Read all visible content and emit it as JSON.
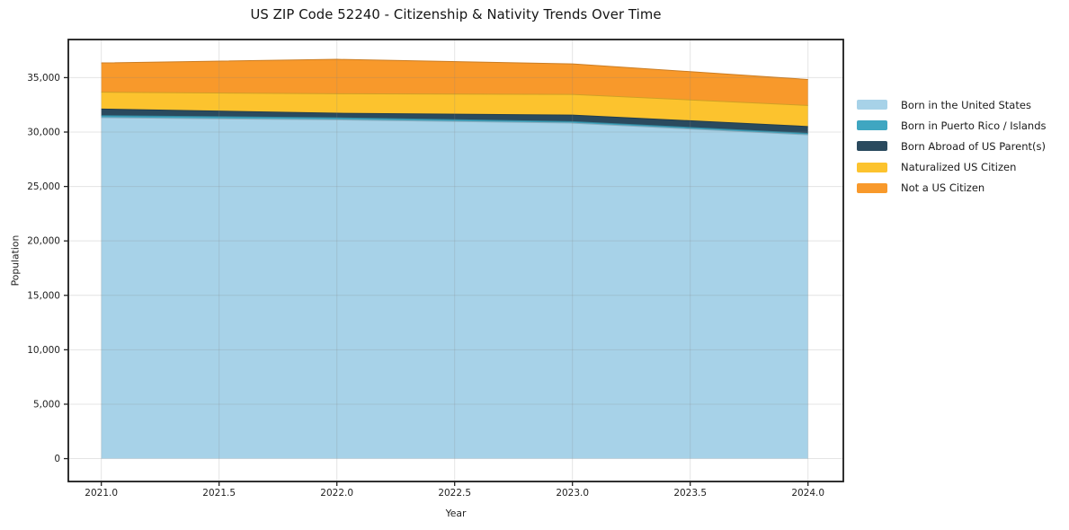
{
  "title": "US ZIP Code 52240 - Citizenship & Nativity Trends Over Time",
  "chart_data": {
    "type": "area",
    "stacked": true,
    "title": "US ZIP Code 52240 - Citizenship & Nativity Trends Over Time",
    "xlabel": "Year",
    "ylabel": "Population",
    "x": [
      2021,
      2022,
      2023,
      2024
    ],
    "series": [
      {
        "name": "Born in the United States",
        "color": "#a7d2e8",
        "values": [
          31320,
          31120,
          30820,
          29740
        ]
      },
      {
        "name": "Born in Puerto Rico / Islands",
        "color": "#3fa6c1",
        "values": [
          190,
          190,
          140,
          140
        ]
      },
      {
        "name": "Born Abroad of US Parent(s)",
        "color": "#2a4a5e",
        "values": [
          610,
          420,
          600,
          630
        ]
      },
      {
        "name": "Naturalized US Citizen",
        "color": "#fcc32e",
        "values": [
          1540,
          1790,
          1900,
          1930
        ]
      },
      {
        "name": "Not a US Citizen",
        "color": "#f8992b",
        "values": [
          2690,
          3160,
          2800,
          2390
        ]
      }
    ],
    "x_ticks": {
      "values": [
        2021.0,
        2021.5,
        2022.0,
        2022.5,
        2023.0,
        2023.5,
        2024.0
      ],
      "labels": [
        "2021.0",
        "2021.5",
        "2022.0",
        "2022.5",
        "2023.0",
        "2023.5",
        "2024.0"
      ]
    },
    "y_ticks": {
      "values": [
        0,
        5000,
        10000,
        15000,
        20000,
        25000,
        30000,
        35000
      ],
      "labels": [
        "0",
        "5,000",
        "10,000",
        "15,000",
        "20,000",
        "25,000",
        "30,000",
        "35,000"
      ]
    },
    "xlim": [
      2020.86,
      2024.15
    ],
    "ylim": [
      -2100,
      38500
    ],
    "grid": true,
    "legend_position": "right"
  }
}
